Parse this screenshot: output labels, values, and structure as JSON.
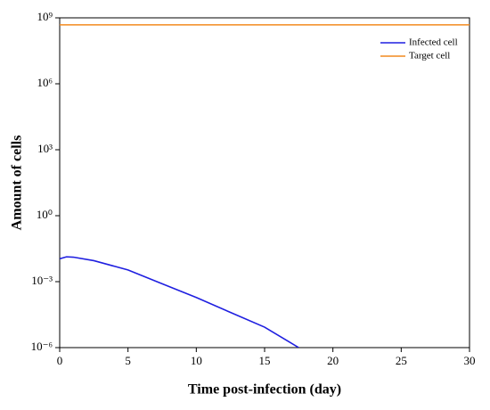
{
  "chart_data": {
    "type": "line",
    "xlabel": "Time post-infection (day)",
    "ylabel": "Amount of cells",
    "xlim": [
      0,
      30
    ],
    "xticks": [
      0,
      5,
      10,
      15,
      20,
      25,
      30
    ],
    "ylim": [
      1e-06,
      1000000000.0
    ],
    "yticks": [
      {
        "value": 1e-06,
        "label": "10⁻⁶"
      },
      {
        "value": 0.001,
        "label": "10⁻³"
      },
      {
        "value": 1,
        "label": "10⁰"
      },
      {
        "value": 1000.0,
        "label": "10³"
      },
      {
        "value": 1000000.0,
        "label": "10⁶"
      },
      {
        "value": 1000000000.0,
        "label": "10⁹"
      }
    ],
    "ylog": true,
    "legend": "upper right",
    "series": [
      {
        "name": "Infected cell",
        "color": "#1f1fe0",
        "x": [
          0,
          0.5,
          1,
          2.5,
          5,
          7.5,
          10,
          12.5,
          15,
          17.5
        ],
        "values": [
          0.011,
          0.0135,
          0.013,
          0.009,
          0.0034,
          0.0008,
          0.00019,
          4e-05,
          8.5e-06,
          1e-06
        ]
      },
      {
        "name": "Target cell",
        "color": "#f28a1e",
        "x": [
          0,
          30
        ],
        "values": [
          480000000,
          480000000
        ]
      }
    ]
  }
}
